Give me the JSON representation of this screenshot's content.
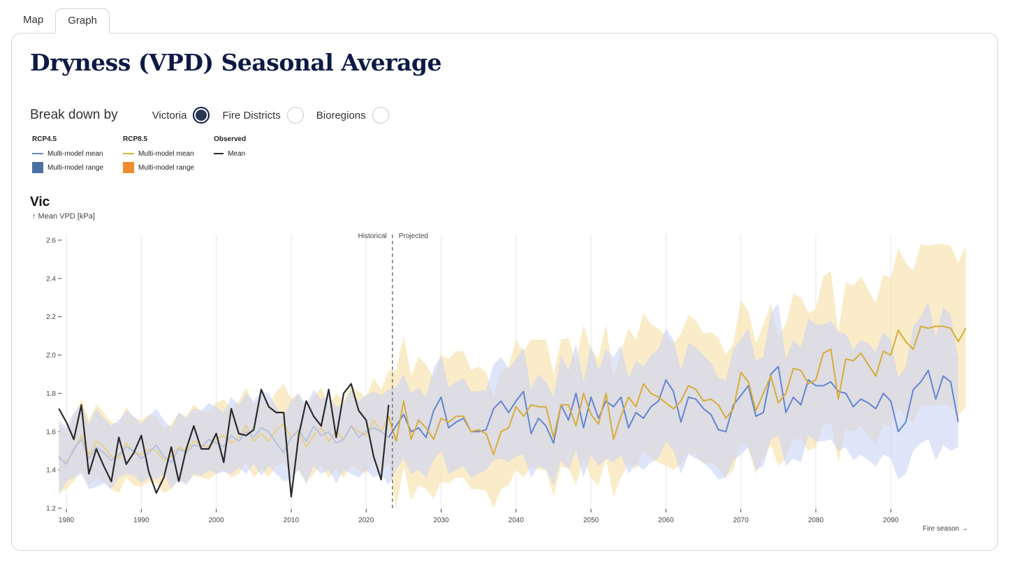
{
  "tabs": [
    {
      "label": "Map",
      "active": false
    },
    {
      "label": "Graph",
      "active": true
    }
  ],
  "title": "Dryness (VPD) Seasonal Average",
  "breakdown": {
    "label": "Break down by",
    "options": [
      {
        "label": "Victoria",
        "selected": true
      },
      {
        "label": "Fire Districts",
        "selected": false
      },
      {
        "label": "Bioregions",
        "selected": false
      }
    ]
  },
  "legend": {
    "rcp45": {
      "title": "RCP4.5",
      "mean": "Multi-model mean",
      "range": "Multi-model range"
    },
    "rcp85": {
      "title": "RCP8.5",
      "mean": "Multi-model mean",
      "range": "Multi-model range"
    },
    "observed": {
      "title": "Observed",
      "mean": "Mean"
    }
  },
  "colors": {
    "rcp45_line": "#6484d4",
    "rcp45_band": "#c9d4f5",
    "rcp85_line": "#d9ac38",
    "rcp85_band": "#f8e4b0",
    "observed": "#2a2a2a",
    "grid": "#e6e6e6",
    "divider": "#777777",
    "legend_rcp45_swatch": "#4a70a0",
    "legend_rcp85_swatch": "#f08c2c"
  },
  "chart_data": {
    "type": "line",
    "region": "Vic",
    "ylabel": "↑ Mean VPD [kPa]",
    "xlabel": "Fire season →",
    "ylim": [
      1.2,
      2.6
    ],
    "xlim": [
      1979,
      2099
    ],
    "yticks": [
      1.2,
      1.4,
      1.6,
      1.8,
      2.0,
      2.2,
      2.4,
      2.6
    ],
    "ytick_labels": [
      "1.2",
      "1.4",
      "1.6",
      "1.8",
      "2.0",
      "2.2",
      "2.4",
      "2.6"
    ],
    "xticks": [
      1980,
      1990,
      2000,
      2010,
      2020,
      2030,
      2040,
      2050,
      2060,
      2070,
      2080,
      2090
    ],
    "xtick_labels": [
      "1980",
      "1990",
      "2000",
      "2010",
      "2020",
      "2030",
      "2040",
      "2050",
      "2060",
      "2070",
      "2080",
      "2090"
    ],
    "divider_year": 2023.5,
    "annotations": {
      "left": "Historical",
      "right": "Projected"
    },
    "series": [
      {
        "name": "Observed Mean",
        "x_start": 1979,
        "values": [
          1.72,
          1.65,
          1.56,
          1.74,
          1.38,
          1.51,
          1.42,
          1.34,
          1.57,
          1.43,
          1.49,
          1.58,
          1.39,
          1.28,
          1.36,
          1.52,
          1.34,
          1.51,
          1.63,
          1.51,
          1.51,
          1.59,
          1.44,
          1.72,
          1.59,
          1.58,
          1.61,
          1.82,
          1.73,
          1.7,
          1.7,
          1.26,
          1.58,
          1.76,
          1.68,
          1.63,
          1.82,
          1.57,
          1.8,
          1.85,
          1.71,
          1.66,
          1.47,
          1.35,
          1.74
        ]
      },
      {
        "name": "RCP4.5 Multi-model mean",
        "x_start": 1979,
        "values": [
          1.47,
          1.43,
          1.51,
          1.56,
          1.46,
          1.52,
          1.49,
          1.45,
          1.48,
          1.52,
          1.5,
          1.46,
          1.49,
          1.53,
          1.47,
          1.44,
          1.51,
          1.49,
          1.53,
          1.52,
          1.56,
          1.54,
          1.52,
          1.58,
          1.55,
          1.6,
          1.57,
          1.62,
          1.6,
          1.54,
          1.49,
          1.57,
          1.61,
          1.55,
          1.63,
          1.58,
          1.6,
          1.54,
          1.56,
          1.63,
          1.57,
          1.6,
          1.62,
          1.6,
          1.57,
          1.63,
          1.69,
          1.6,
          1.62,
          1.57,
          1.71,
          1.78,
          1.62,
          1.65,
          1.67,
          1.6,
          1.6,
          1.61,
          1.72,
          1.76,
          1.7,
          1.76,
          1.81,
          1.59,
          1.67,
          1.63,
          1.54,
          1.74,
          1.66,
          1.8,
          1.62,
          1.78,
          1.67,
          1.76,
          1.73,
          1.78,
          1.62,
          1.7,
          1.67,
          1.73,
          1.76,
          1.87,
          1.81,
          1.65,
          1.78,
          1.77,
          1.72,
          1.69,
          1.61,
          1.6,
          1.74,
          1.79,
          1.84,
          1.68,
          1.7,
          1.9,
          1.94,
          1.7,
          1.78,
          1.74,
          1.87,
          1.84,
          1.84,
          1.86,
          1.81,
          1.8,
          1.73,
          1.77,
          1.75,
          1.72,
          1.8,
          1.76,
          1.6,
          1.65,
          1.82,
          1.86,
          1.92,
          1.77,
          1.89,
          1.86,
          1.65
        ]
      },
      {
        "name": "RCP8.5 Multi-model mean",
        "x_start": 1979,
        "values": [
          1.46,
          1.44,
          1.5,
          1.58,
          1.48,
          1.55,
          1.52,
          1.47,
          1.46,
          1.54,
          1.49,
          1.48,
          1.51,
          1.5,
          1.45,
          1.47,
          1.52,
          1.5,
          1.55,
          1.53,
          1.52,
          1.56,
          1.58,
          1.54,
          1.57,
          1.63,
          1.55,
          1.59,
          1.55,
          1.61,
          1.64,
          1.57,
          1.6,
          1.52,
          1.58,
          1.62,
          1.55,
          1.6,
          1.56,
          1.63,
          1.6,
          1.58,
          1.66,
          1.6,
          1.68,
          1.55,
          1.76,
          1.56,
          1.66,
          1.62,
          1.56,
          1.67,
          1.65,
          1.68,
          1.68,
          1.6,
          1.61,
          1.59,
          1.48,
          1.6,
          1.62,
          1.73,
          1.68,
          1.74,
          1.73,
          1.73,
          1.57,
          1.74,
          1.74,
          1.63,
          1.8,
          1.69,
          1.64,
          1.8,
          1.56,
          1.68,
          1.78,
          1.73,
          1.85,
          1.8,
          1.78,
          1.75,
          1.72,
          1.76,
          1.84,
          1.82,
          1.76,
          1.77,
          1.74,
          1.67,
          1.72,
          1.91,
          1.86,
          1.71,
          1.8,
          1.89,
          1.75,
          1.8,
          1.93,
          1.92,
          1.85,
          1.87,
          2.01,
          2.03,
          1.77,
          1.98,
          1.97,
          2.01,
          1.95,
          1.89,
          2.02,
          2.0,
          2.13,
          2.07,
          2.03,
          2.15,
          2.14,
          2.15,
          2.15,
          2.14,
          2.07,
          2.14
        ]
      },
      {
        "name": "RCP4.5 Multi-model range",
        "x_start": 1979,
        "low": [
          1.27,
          1.34,
          1.36,
          1.38,
          1.3,
          1.31,
          1.33,
          1.3,
          1.36,
          1.38,
          1.37,
          1.33,
          1.36,
          1.35,
          1.38,
          1.3,
          1.35,
          1.32,
          1.38,
          1.37,
          1.4,
          1.38,
          1.39,
          1.38,
          1.41,
          1.38,
          1.43,
          1.37,
          1.42,
          1.38,
          1.34,
          1.35,
          1.4,
          1.33,
          1.42,
          1.38,
          1.4,
          1.33,
          1.4,
          1.38,
          1.36,
          1.4,
          1.36,
          1.38,
          1.32,
          1.4,
          1.46,
          1.38,
          1.4,
          1.36,
          1.45,
          1.5,
          1.38,
          1.4,
          1.42,
          1.36,
          1.38,
          1.4,
          1.45,
          1.46,
          1.44,
          1.47,
          1.48,
          1.36,
          1.42,
          1.4,
          1.32,
          1.45,
          1.4,
          1.5,
          1.36,
          1.48,
          1.42,
          1.46,
          1.44,
          1.48,
          1.38,
          1.43,
          1.4,
          1.44,
          1.46,
          1.55,
          1.5,
          1.38,
          1.48,
          1.46,
          1.44,
          1.4,
          1.35,
          1.36,
          1.45,
          1.48,
          1.52,
          1.4,
          1.42,
          1.56,
          1.58,
          1.42,
          1.46,
          1.44,
          1.58,
          1.55,
          1.55,
          1.56,
          1.5,
          1.52,
          1.45,
          1.48,
          1.45,
          1.42,
          1.48,
          1.46,
          1.35,
          1.38,
          1.5,
          1.54,
          1.56,
          1.45,
          1.53,
          1.5,
          1.52
        ],
        "high": [
          1.66,
          1.62,
          1.7,
          1.74,
          1.64,
          1.72,
          1.67,
          1.63,
          1.66,
          1.71,
          1.68,
          1.64,
          1.68,
          1.72,
          1.66,
          1.62,
          1.7,
          1.67,
          1.72,
          1.71,
          1.75,
          1.73,
          1.7,
          1.78,
          1.74,
          1.8,
          1.76,
          1.81,
          1.8,
          1.73,
          1.68,
          1.76,
          1.8,
          1.74,
          1.82,
          1.77,
          1.79,
          1.73,
          1.75,
          1.82,
          1.76,
          1.79,
          1.81,
          1.79,
          1.82,
          1.83,
          1.9,
          1.8,
          1.83,
          1.78,
          1.93,
          2.0,
          1.83,
          1.86,
          1.88,
          1.81,
          1.81,
          1.82,
          1.95,
          1.99,
          1.93,
          1.98,
          2.04,
          1.82,
          1.9,
          1.86,
          1.78,
          2.0,
          1.92,
          2.06,
          1.86,
          2.05,
          1.92,
          2.03,
          1.99,
          2.05,
          1.88,
          1.97,
          1.94,
          2.0,
          2.03,
          2.14,
          2.08,
          1.92,
          2.06,
          2.04,
          2.0,
          1.96,
          1.88,
          1.87,
          2.03,
          2.08,
          2.14,
          1.97,
          1.99,
          2.22,
          2.27,
          1.98,
          2.08,
          2.04,
          2.19,
          2.16,
          2.16,
          2.18,
          2.12,
          2.11,
          2.03,
          2.08,
          2.06,
          2.02,
          2.12,
          2.08,
          1.88,
          1.94,
          2.15,
          2.2,
          2.28,
          2.09,
          2.25,
          2.21,
          1.98
        ]
      },
      {
        "name": "RCP8.5 Multi-model range",
        "x_start": 1979,
        "low": [
          1.28,
          1.3,
          1.34,
          1.4,
          1.32,
          1.36,
          1.34,
          1.3,
          1.28,
          1.36,
          1.32,
          1.31,
          1.34,
          1.33,
          1.28,
          1.3,
          1.35,
          1.33,
          1.37,
          1.36,
          1.35,
          1.38,
          1.4,
          1.36,
          1.38,
          1.44,
          1.36,
          1.4,
          1.36,
          1.42,
          1.44,
          1.38,
          1.4,
          1.33,
          1.38,
          1.42,
          1.36,
          1.4,
          1.36,
          1.42,
          1.4,
          1.38,
          1.45,
          1.38,
          1.44,
          1.2,
          1.42,
          1.24,
          1.32,
          1.3,
          1.25,
          1.34,
          1.33,
          1.36,
          1.36,
          1.3,
          1.3,
          1.29,
          1.2,
          1.3,
          1.32,
          1.4,
          1.36,
          1.42,
          1.4,
          1.4,
          1.26,
          1.42,
          1.41,
          1.32,
          1.46,
          1.36,
          1.32,
          1.46,
          1.26,
          1.36,
          1.44,
          1.4,
          1.5,
          1.46,
          1.44,
          1.42,
          1.4,
          1.43,
          1.49,
          1.48,
          1.43,
          1.44,
          1.41,
          1.36,
          1.4,
          1.55,
          1.51,
          1.38,
          1.46,
          1.53,
          1.42,
          1.46,
          1.56,
          1.56,
          1.5,
          1.52,
          1.63,
          1.65,
          1.44,
          1.61,
          1.6,
          1.63,
          1.58,
          1.53,
          1.64,
          1.62,
          1.72,
          1.68,
          1.64,
          1.74,
          1.73,
          1.74,
          1.74,
          1.73,
          1.68,
          1.73
        ],
        "high": [
          1.64,
          1.6,
          1.68,
          1.77,
          1.66,
          1.74,
          1.7,
          1.65,
          1.64,
          1.73,
          1.67,
          1.66,
          1.69,
          1.68,
          1.62,
          1.64,
          1.7,
          1.68,
          1.74,
          1.71,
          1.7,
          1.75,
          1.77,
          1.72,
          1.76,
          1.83,
          1.74,
          1.79,
          1.74,
          1.81,
          1.85,
          1.77,
          1.8,
          1.71,
          1.78,
          1.83,
          1.74,
          1.8,
          1.76,
          1.84,
          1.81,
          1.78,
          1.88,
          1.82,
          1.92,
          1.92,
          2.1,
          1.89,
          1.99,
          1.95,
          1.88,
          2.0,
          1.98,
          2.02,
          2.02,
          1.92,
          1.94,
          1.91,
          1.78,
          1.92,
          1.94,
          2.08,
          2.02,
          2.08,
          2.08,
          2.08,
          1.9,
          2.08,
          2.09,
          1.96,
          2.16,
          2.03,
          1.98,
          2.16,
          1.88,
          2.02,
          2.14,
          2.08,
          2.22,
          2.16,
          2.14,
          2.1,
          2.06,
          2.11,
          2.21,
          2.18,
          2.11,
          2.12,
          2.09,
          2.0,
          2.06,
          2.29,
          2.23,
          2.06,
          2.16,
          2.27,
          2.1,
          2.16,
          2.32,
          2.3,
          2.22,
          2.24,
          2.41,
          2.44,
          2.12,
          2.38,
          2.36,
          2.41,
          2.34,
          2.27,
          2.42,
          2.4,
          2.56,
          2.48,
          2.44,
          2.58,
          2.57,
          2.58,
          2.58,
          2.57,
          2.48,
          2.57
        ]
      }
    ]
  }
}
